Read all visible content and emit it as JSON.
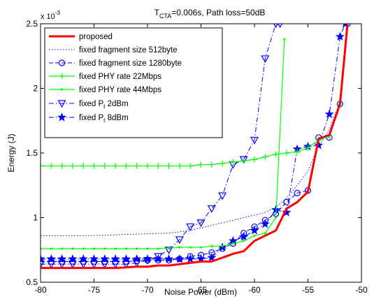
{
  "chart_data": {
    "type": "line",
    "title": "T_CTA=0.006s, Path loss=50dB",
    "title_main": "T",
    "title_sub": "CTA",
    "title_rest": "=0.006s, Path loss=50dB",
    "xlabel": "Noise Power (dBm)",
    "ylabel": "Energy (J)",
    "y_exponent_label": "x 10",
    "y_exponent": "-3",
    "xlim": [
      -80,
      -50
    ],
    "ylim": [
      0.5,
      2.5
    ],
    "xticks": [
      -80,
      -75,
      -70,
      -65,
      -60,
      -55,
      -50
    ],
    "xtick_labels": [
      "-80",
      "-75",
      "-70",
      "-65",
      "-60",
      "-55",
      "-50"
    ],
    "yticks": [
      0.5,
      1,
      1.5,
      2,
      2.5
    ],
    "ytick_labels": [
      "0.5",
      "1",
      "1.5",
      "2",
      "2.5"
    ],
    "grid": false,
    "legend_position": "top-left",
    "series": [
      {
        "name": "proposed",
        "color": "#ff0000",
        "style": "solid",
        "width": 3,
        "marker": "none",
        "x": [
          -80,
          -79,
          -78,
          -77,
          -76,
          -75,
          -74,
          -73,
          -72,
          -71,
          -70,
          -69,
          -68,
          -67,
          -66,
          -65,
          -64,
          -63,
          -62,
          -61,
          -60,
          -59,
          -58,
          -57,
          -56,
          -55,
          -54,
          -53,
          -52,
          -51.3
        ],
        "y": [
          0.61,
          0.61,
          0.61,
          0.61,
          0.61,
          0.61,
          0.61,
          0.61,
          0.615,
          0.62,
          0.62,
          0.63,
          0.63,
          0.64,
          0.65,
          0.66,
          0.66,
          0.69,
          0.72,
          0.74,
          0.82,
          0.86,
          0.9,
          1.07,
          1.12,
          1.2,
          1.61,
          1.64,
          1.88,
          2.5
        ]
      },
      {
        "name": "fixed fragment size 512byte",
        "color": "#0000ff",
        "style": "dotted",
        "width": 1,
        "marker": "none",
        "x": [
          -80,
          -78,
          -76,
          -74,
          -72,
          -70,
          -68,
          -66,
          -65,
          -64,
          -63,
          -62,
          -61,
          -60,
          -59,
          -58,
          -57,
          -56,
          -55,
          -54,
          -53,
          -52,
          -51.3
        ],
        "y": [
          0.86,
          0.86,
          0.86,
          0.865,
          0.87,
          0.875,
          0.88,
          0.9,
          0.92,
          0.94,
          0.96,
          0.98,
          1.0,
          1.02,
          1.04,
          1.08,
          1.15,
          1.25,
          1.36,
          1.55,
          1.68,
          1.9,
          2.5
        ]
      },
      {
        "name": "fixed fragment size 1280byte",
        "color": "#0000ff",
        "style": "dashed",
        "width": 1,
        "marker": "circle",
        "x": [
          -80,
          -79,
          -78,
          -77,
          -76,
          -75,
          -74,
          -73,
          -72,
          -71,
          -70,
          -69,
          -68,
          -67,
          -66,
          -65,
          -64,
          -63,
          -62,
          -61,
          -60,
          -59,
          -58,
          -57,
          -56,
          -55,
          -54,
          -53,
          -52,
          -51.3
        ],
        "y": [
          0.66,
          0.66,
          0.66,
          0.66,
          0.66,
          0.66,
          0.66,
          0.66,
          0.66,
          0.665,
          0.67,
          0.67,
          0.67,
          0.68,
          0.7,
          0.71,
          0.73,
          0.76,
          0.8,
          0.88,
          0.93,
          0.98,
          1.03,
          1.12,
          1.19,
          1.21,
          1.62,
          1.62,
          1.88,
          2.5
        ]
      },
      {
        "name": "fixed PHY rate 22Mbps",
        "color": "#00ff00",
        "style": "solid",
        "width": 1.2,
        "marker": "plus",
        "x": [
          -80,
          -79,
          -78,
          -77,
          -76,
          -75,
          -74,
          -73,
          -72,
          -71,
          -70,
          -69,
          -68,
          -67,
          -66,
          -65,
          -64,
          -63,
          -62,
          -61,
          -60,
          -59,
          -58,
          -57,
          -56,
          -55,
          -54,
          -53,
          -52,
          -51.3
        ],
        "y": [
          1.4,
          1.4,
          1.4,
          1.4,
          1.4,
          1.4,
          1.4,
          1.4,
          1.4,
          1.4,
          1.4,
          1.4,
          1.4,
          1.4,
          1.4,
          1.41,
          1.41,
          1.42,
          1.43,
          1.44,
          1.45,
          1.47,
          1.49,
          1.5,
          1.51,
          1.54,
          1.6,
          1.63,
          1.88,
          2.5
        ]
      },
      {
        "name": "fixed PHY rate 44Mbps",
        "color": "#00ff00",
        "style": "solid",
        "width": 1.2,
        "marker": "dot",
        "x": [
          -80,
          -79,
          -78,
          -77,
          -76,
          -75,
          -74,
          -73,
          -72,
          -71,
          -70,
          -69,
          -68,
          -67,
          -66,
          -65,
          -64,
          -63,
          -62,
          -61,
          -60,
          -59,
          -58,
          -57.2
        ],
        "y": [
          0.76,
          0.76,
          0.76,
          0.76,
          0.76,
          0.76,
          0.76,
          0.76,
          0.76,
          0.76,
          0.76,
          0.76,
          0.765,
          0.77,
          0.77,
          0.77,
          0.78,
          0.78,
          0.8,
          0.82,
          0.86,
          0.88,
          1.0,
          2.38
        ]
      },
      {
        "name": "fixed P_t 2dBm",
        "name_main": "fixed P",
        "name_sub": "t",
        "name_rest": " 2dBm",
        "color": "#0000ff",
        "style": "dashdot",
        "width": 1,
        "marker": "triangle-down",
        "x": [
          -80,
          -79,
          -78,
          -77,
          -76,
          -75,
          -74,
          -73,
          -72,
          -71,
          -70,
          -69,
          -68,
          -67,
          -66,
          -65,
          -64,
          -63,
          -62,
          -61,
          -60,
          -59,
          -58,
          -57.6
        ],
        "y": [
          0.64,
          0.64,
          0.64,
          0.64,
          0.64,
          0.64,
          0.64,
          0.64,
          0.64,
          0.65,
          0.67,
          0.7,
          0.75,
          0.83,
          0.93,
          0.96,
          1.07,
          1.17,
          1.41,
          1.45,
          1.6,
          2.23,
          2.5,
          2.5
        ]
      },
      {
        "name": "fixed P_t 8dBm",
        "name_main": "fixed P",
        "name_sub": "t",
        "name_rest": " 8dBm",
        "color": "#0000ff",
        "style": "dashdot",
        "width": 1,
        "marker": "star",
        "x": [
          -80,
          -79,
          -78,
          -77,
          -76,
          -75,
          -74,
          -73,
          -72,
          -71,
          -70,
          -69,
          -68,
          -67,
          -66,
          -65,
          -64,
          -63,
          -62,
          -61,
          -60,
          -59,
          -58,
          -57,
          -56,
          -55,
          -54,
          -53,
          -52,
          -51.5
        ],
        "y": [
          0.68,
          0.68,
          0.68,
          0.68,
          0.68,
          0.68,
          0.68,
          0.68,
          0.68,
          0.68,
          0.68,
          0.68,
          0.68,
          0.68,
          0.68,
          0.68,
          0.69,
          0.77,
          0.82,
          0.85,
          0.9,
          0.95,
          1.06,
          1.04,
          1.53,
          1.55,
          1.56,
          1.8,
          2.4,
          2.5
        ]
      }
    ]
  }
}
